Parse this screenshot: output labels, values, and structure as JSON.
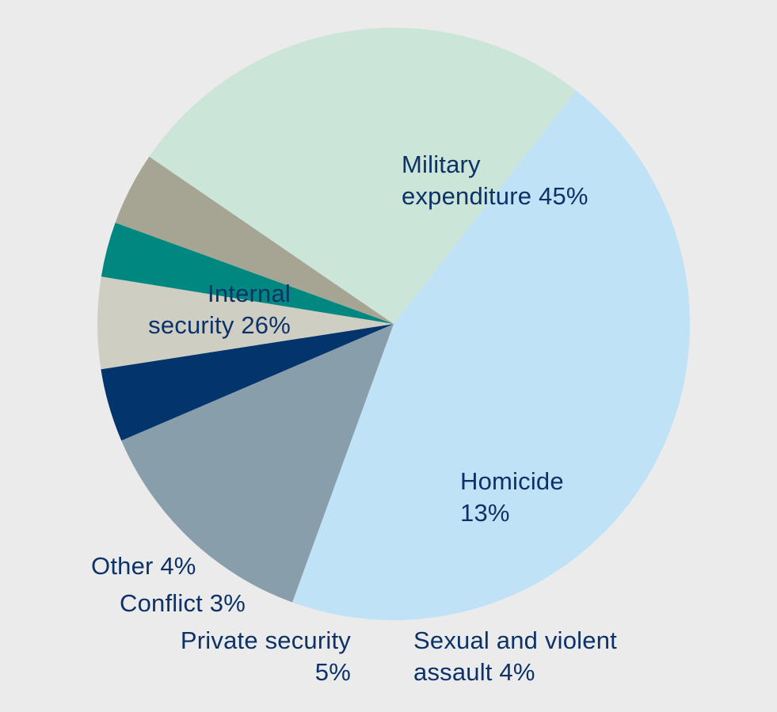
{
  "chart_data": {
    "type": "pie",
    "title": "",
    "slices": [
      {
        "name": "Military expenditure",
        "value": 45,
        "color": "#bfe2f6",
        "label_lines": [
          "Military",
          "expenditure 45%"
        ]
      },
      {
        "name": "Homicide",
        "value": 13,
        "color": "#889eab",
        "label_lines": [
          "Homicide",
          "13%"
        ]
      },
      {
        "name": "Sexual and violent assault",
        "value": 4,
        "color": "#03356c",
        "label_lines": [
          "Sexual and violent",
          "assault 4%"
        ]
      },
      {
        "name": "Private security",
        "value": 5,
        "color": "#cfcec3",
        "label_lines": [
          "Private security",
          "5%"
        ]
      },
      {
        "name": "Conflict",
        "value": 3,
        "color": "#008880",
        "label_lines": [
          "Conflict 3%"
        ]
      },
      {
        "name": "Other",
        "value": 4,
        "color": "#a6a594",
        "label_lines": [
          "Other 4%"
        ]
      },
      {
        "name": "Internal security",
        "value": 26,
        "color": "#cbe5d8",
        "label_lines": [
          "Internal",
          "security 26%"
        ]
      }
    ],
    "start_angle_deg": -52,
    "direction": "clockwise",
    "background": "#ebebec",
    "label_color": "#0d3268"
  }
}
